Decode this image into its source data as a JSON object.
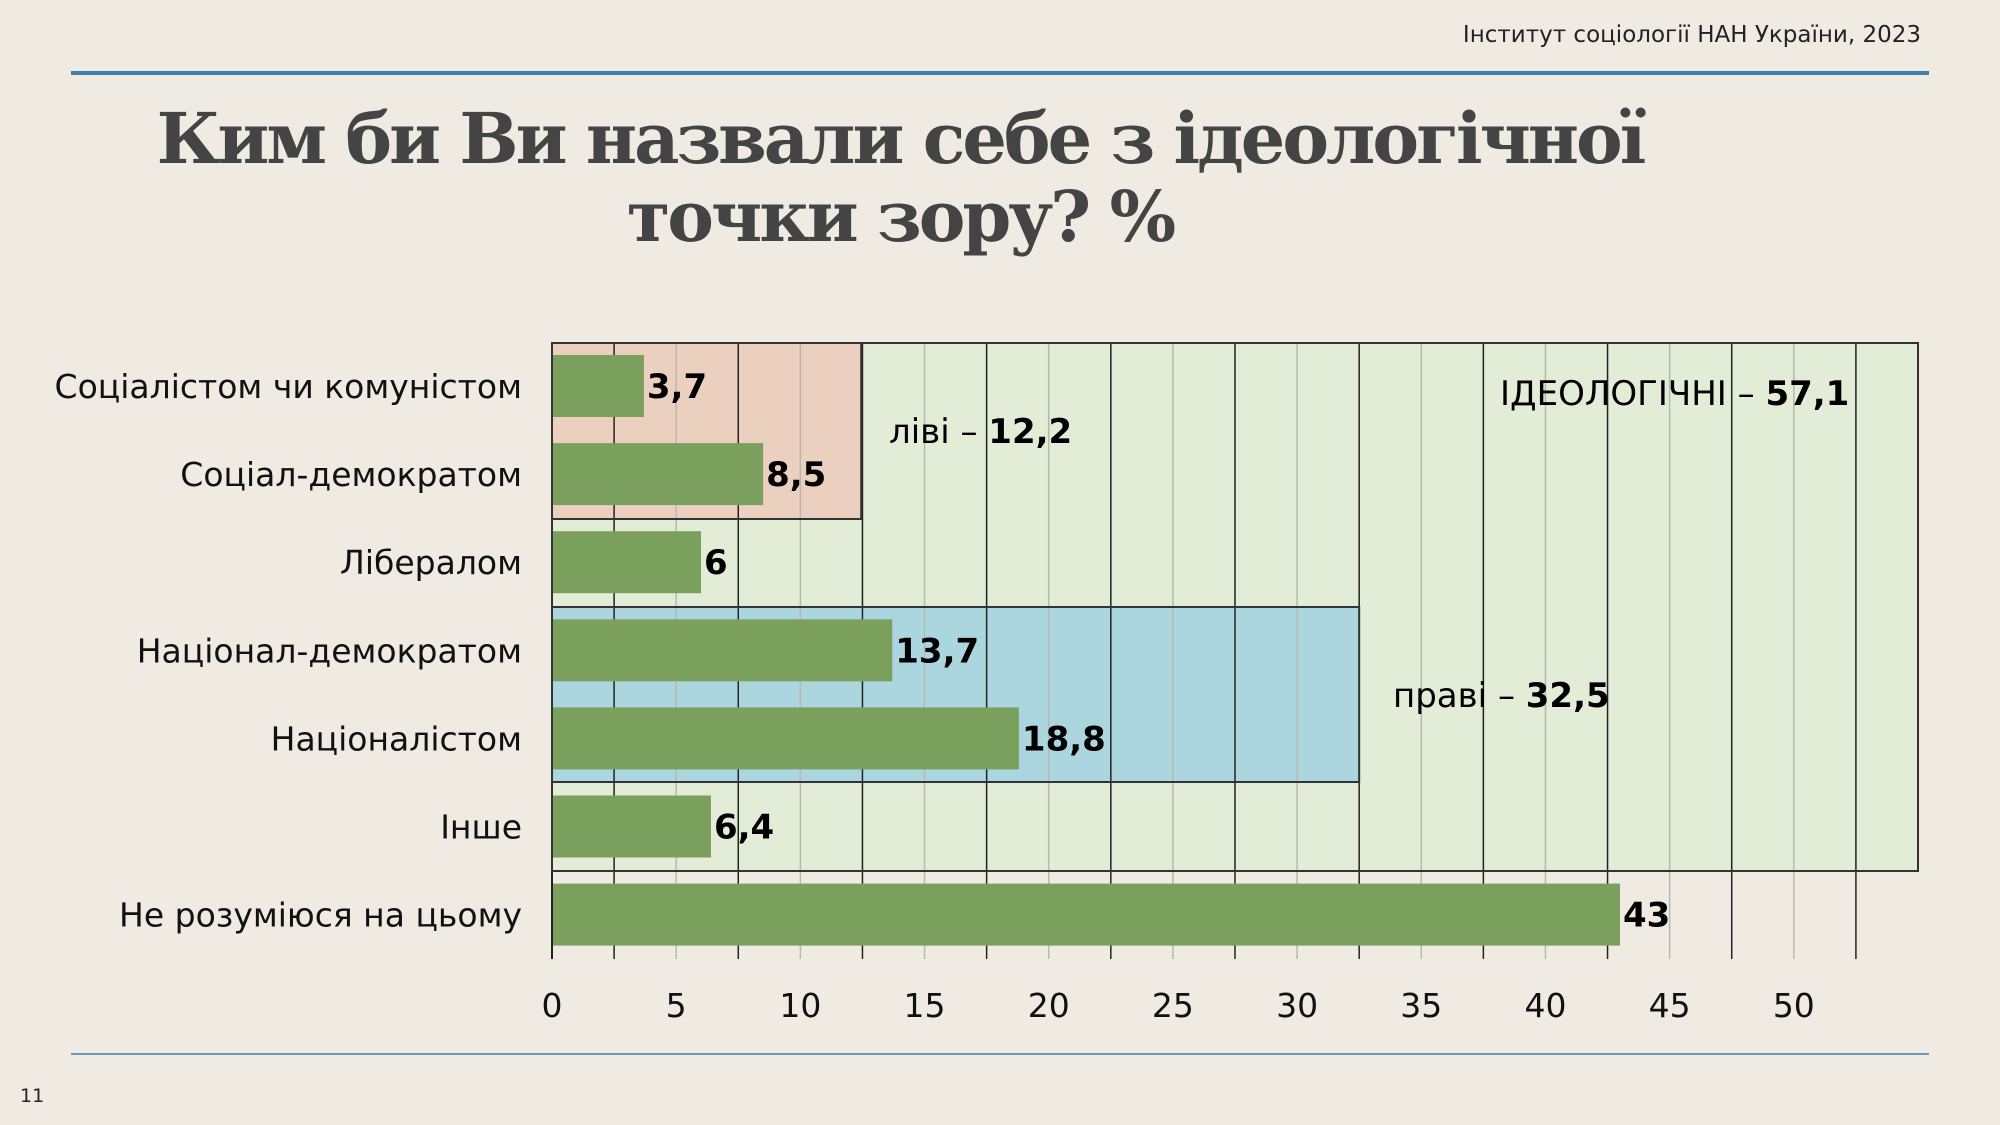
{
  "header": {
    "source": "Інститут соціології НАН України, 2023"
  },
  "title_line1": "Ким би Ви назвали себе з ідеологічної",
  "title_line2": "точки зору? %",
  "page_number": "11",
  "colors": {
    "bar": "#7ba05e",
    "ideological_box": "#e3ecd6",
    "left_box": "#ebd0c0",
    "right_box": "#acd6df",
    "background": "#efebe2",
    "accent_line": "#3f7fab"
  },
  "chart_data": {
    "type": "bar",
    "orientation": "horizontal",
    "categories": [
      "Соціалістом чи комуністом",
      "Соціал-демократом",
      "Лібералом",
      "Націонал-демократом",
      "Націоналістом",
      "Інше",
      "Не розуміюся на цьому"
    ],
    "values": [
      3.7,
      8.5,
      6,
      13.7,
      18.8,
      6.4,
      43
    ],
    "value_labels": [
      "3,7",
      "8,5",
      "6",
      "13,7",
      "18,8",
      "6,4",
      "43"
    ],
    "xlim": [
      0,
      55
    ],
    "x_ticks": [
      "0",
      "5",
      "10",
      "15",
      "20",
      "25",
      "30",
      "35",
      "40",
      "45",
      "50"
    ],
    "grid": true,
    "groups": [
      {
        "label": "ліві – ",
        "value_label": "12,2",
        "value": 12.2,
        "rows": [
          0,
          1
        ],
        "color": "#ebd0c0"
      },
      {
        "label": "праві – ",
        "value_label": "32,5",
        "value": 32.5,
        "rows": [
          3,
          4
        ],
        "color": "#acd6df"
      },
      {
        "label": "ІДЕОЛОГІЧНІ – ",
        "value_label": "57,1",
        "value": 57.1,
        "rows": [
          0,
          1,
          2,
          3,
          4,
          5
        ],
        "color": "#e3ecd6"
      }
    ]
  }
}
